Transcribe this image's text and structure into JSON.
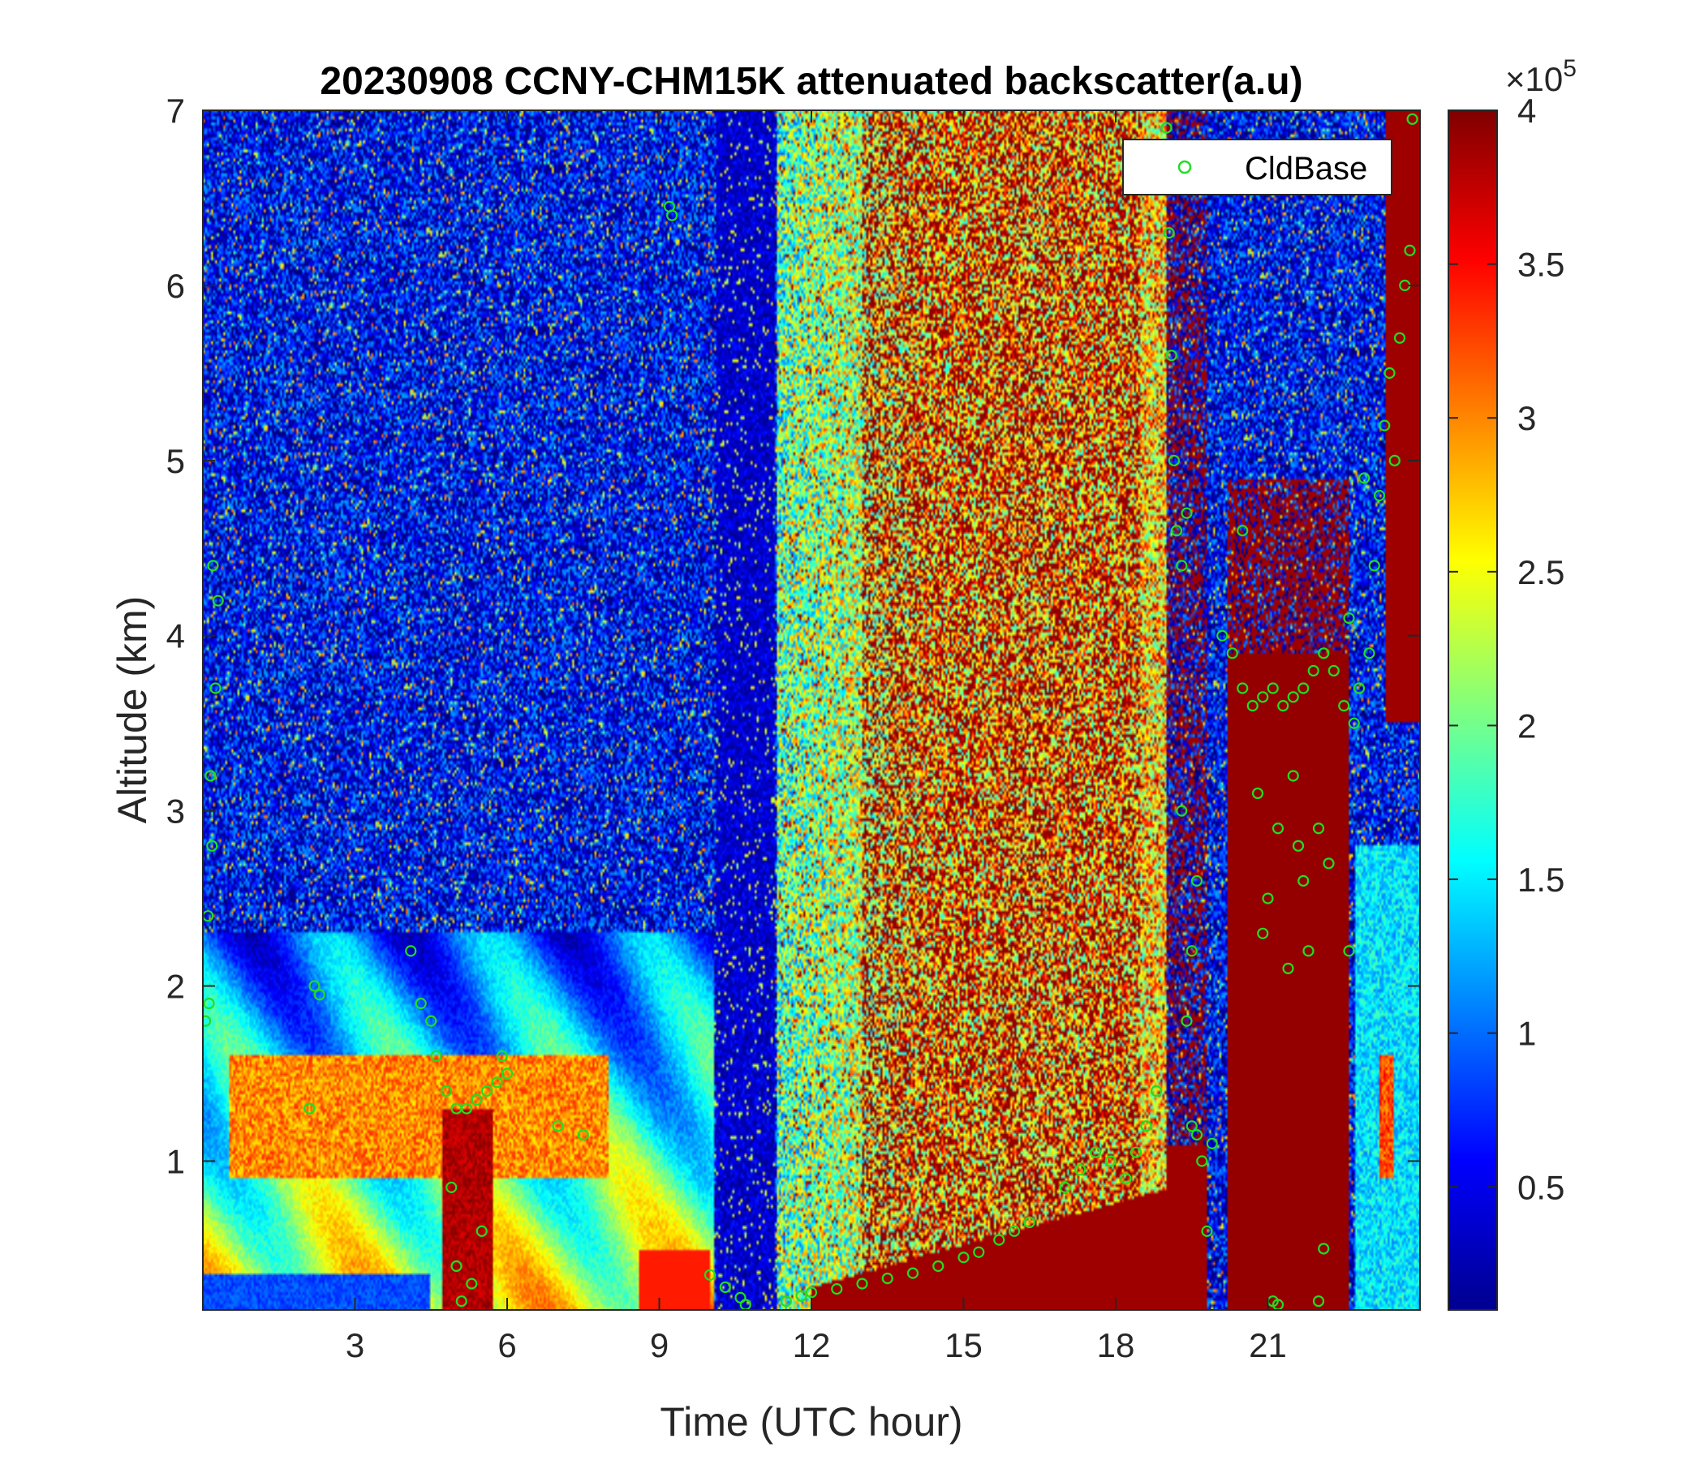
{
  "chart_data": {
    "type": "heatmap",
    "title": "20230908 CCNY-CHM15K attenuated backscatter(a.u)",
    "xlabel": "Time (UTC hour)",
    "ylabel": "Altitude (km)",
    "xlim": [
      0,
      24
    ],
    "ylim": [
      0.15,
      7
    ],
    "xticks": [
      3,
      6,
      9,
      12,
      15,
      18,
      21
    ],
    "yticks": [
      1,
      2,
      3,
      4,
      5,
      6,
      7
    ],
    "colormap": "jet",
    "colorbar": {
      "range": [
        0.1,
        4
      ],
      "ticks": [
        0.5,
        1,
        1.5,
        2,
        2.5,
        3,
        3.5,
        4
      ],
      "exponent_label": "×10",
      "exponent_power": "5"
    },
    "legend": {
      "entries": [
        "CldBase"
      ],
      "location": "top-right"
    },
    "series": [
      {
        "name": "CldBase",
        "marker": "circle",
        "color": "#22dd22",
        "points": [
          [
            0.05,
            1.8
          ],
          [
            0.1,
            2.4
          ],
          [
            0.15,
            3.2
          ],
          [
            0.2,
            4.4
          ],
          [
            0.25,
            3.7
          ],
          [
            0.3,
            4.2
          ],
          [
            0.12,
            1.9
          ],
          [
            0.18,
            2.8
          ],
          [
            2.2,
            2.0
          ],
          [
            2.3,
            1.95
          ],
          [
            2.1,
            1.3
          ],
          [
            4.1,
            2.2
          ],
          [
            4.3,
            1.9
          ],
          [
            4.5,
            1.8
          ],
          [
            4.6,
            1.6
          ],
          [
            4.8,
            1.4
          ],
          [
            5.0,
            1.3
          ],
          [
            5.2,
            1.3
          ],
          [
            5.4,
            1.35
          ],
          [
            5.6,
            1.4
          ],
          [
            5.8,
            1.45
          ],
          [
            5.9,
            1.6
          ],
          [
            6.0,
            1.5
          ],
          [
            4.9,
            0.85
          ],
          [
            5.0,
            0.4
          ],
          [
            5.1,
            0.2
          ],
          [
            5.3,
            0.3
          ],
          [
            5.5,
            0.6
          ],
          [
            7.0,
            1.2
          ],
          [
            7.5,
            1.15
          ],
          [
            9.2,
            6.45
          ],
          [
            9.25,
            6.4
          ],
          [
            10.0,
            0.35
          ],
          [
            10.3,
            0.28
          ],
          [
            10.6,
            0.22
          ],
          [
            10.7,
            0.18
          ],
          [
            11.5,
            0.2
          ],
          [
            11.8,
            0.23
          ],
          [
            12.0,
            0.25
          ],
          [
            12.5,
            0.27
          ],
          [
            13.0,
            0.3
          ],
          [
            13.5,
            0.33
          ],
          [
            14.0,
            0.36
          ],
          [
            14.5,
            0.4
          ],
          [
            15.0,
            0.45
          ],
          [
            15.3,
            0.48
          ],
          [
            15.7,
            0.55
          ],
          [
            16.0,
            0.6
          ],
          [
            16.3,
            0.65
          ],
          [
            17.0,
            0.85
          ],
          [
            17.3,
            0.95
          ],
          [
            17.6,
            1.05
          ],
          [
            17.9,
            1.0
          ],
          [
            18.2,
            0.9
          ],
          [
            18.4,
            1.05
          ],
          [
            18.6,
            1.2
          ],
          [
            18.8,
            1.4
          ],
          [
            19.0,
            6.9
          ],
          [
            19.05,
            6.3
          ],
          [
            19.1,
            5.6
          ],
          [
            19.15,
            5.0
          ],
          [
            19.2,
            4.6
          ],
          [
            19.3,
            4.4
          ],
          [
            19.4,
            4.7
          ],
          [
            19.5,
            1.2
          ],
          [
            19.6,
            1.15
          ],
          [
            19.7,
            1.0
          ],
          [
            19.8,
            0.6
          ],
          [
            19.9,
            1.1
          ],
          [
            19.3,
            3.0
          ],
          [
            19.5,
            2.2
          ],
          [
            19.6,
            2.6
          ],
          [
            19.4,
            1.8
          ],
          [
            20.1,
            4.0
          ],
          [
            20.3,
            3.9
          ],
          [
            20.5,
            3.7
          ],
          [
            20.7,
            3.6
          ],
          [
            20.9,
            3.65
          ],
          [
            21.1,
            3.7
          ],
          [
            21.3,
            3.6
          ],
          [
            21.5,
            3.65
          ],
          [
            21.7,
            3.7
          ],
          [
            21.9,
            3.8
          ],
          [
            22.1,
            3.9
          ],
          [
            22.3,
            3.8
          ],
          [
            22.5,
            3.6
          ],
          [
            22.7,
            3.5
          ],
          [
            22.8,
            3.7
          ],
          [
            20.5,
            4.6
          ],
          [
            20.8,
            3.1
          ],
          [
            21.0,
            2.5
          ],
          [
            21.2,
            2.9
          ],
          [
            20.9,
            2.3
          ],
          [
            21.4,
            2.1
          ],
          [
            21.6,
            2.8
          ],
          [
            21.8,
            2.2
          ],
          [
            22.0,
            2.9
          ],
          [
            22.2,
            2.7
          ],
          [
            22.6,
            2.2
          ],
          [
            21.5,
            3.2
          ],
          [
            21.7,
            2.6
          ],
          [
            21.1,
            0.2
          ],
          [
            21.2,
            0.18
          ],
          [
            22.0,
            0.2
          ],
          [
            22.1,
            0.5
          ],
          [
            23.0,
            3.9
          ],
          [
            23.1,
            4.4
          ],
          [
            23.2,
            4.8
          ],
          [
            23.3,
            5.2
          ],
          [
            23.4,
            5.5
          ],
          [
            23.5,
            5.0
          ],
          [
            23.6,
            5.7
          ],
          [
            23.7,
            6.0
          ],
          [
            23.8,
            6.2
          ],
          [
            23.85,
            6.95
          ],
          [
            22.9,
            4.9
          ],
          [
            22.6,
            4.1
          ]
        ]
      }
    ]
  }
}
